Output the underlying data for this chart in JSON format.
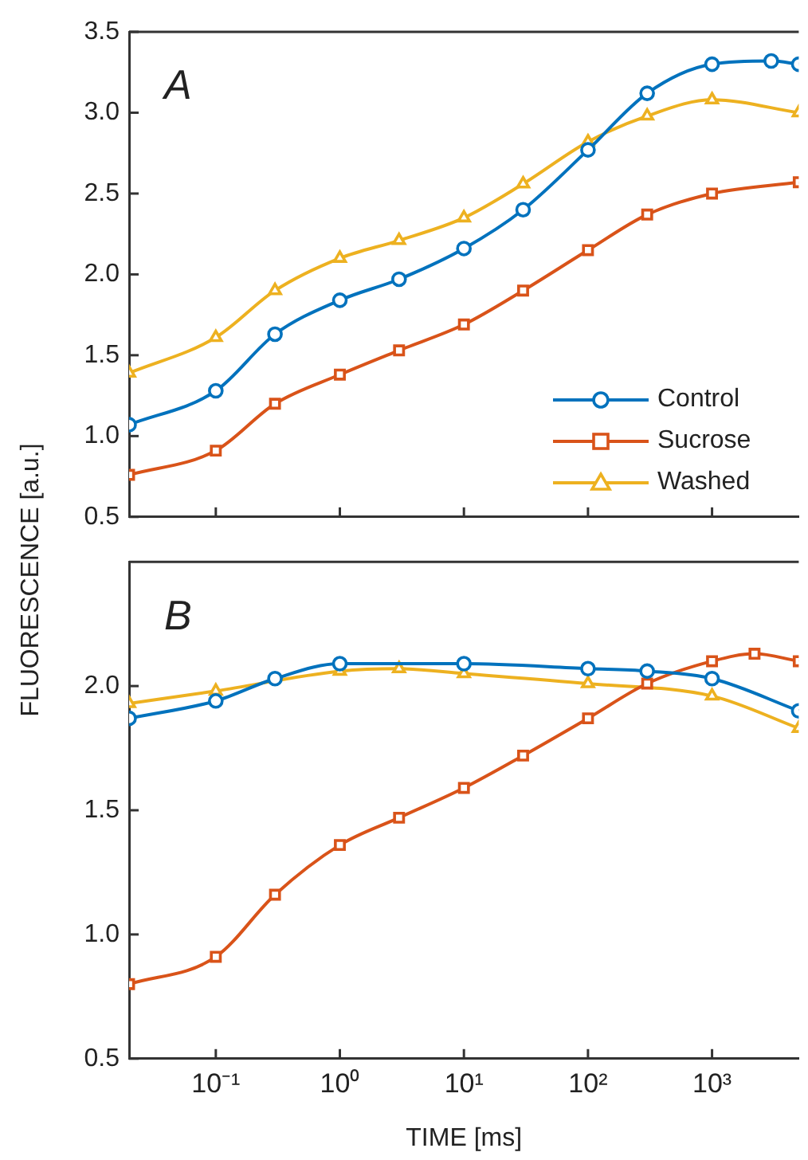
{
  "chart_data": [
    {
      "type": "line",
      "ylabel": "FLUORESCENCE [a.u.]",
      "annotations": [
        "A"
      ],
      "log": "x",
      "legend": "bottom right",
      "tick_labels": "y",
      "grid": false,
      "xlim": [
        0.02,
        5000
      ],
      "xticks": [
        {
          "value": 0.1,
          "label": null
        },
        {
          "value": 1,
          "label": null
        },
        {
          "value": 10,
          "label": null
        },
        {
          "value": 100,
          "label": null
        },
        {
          "value": 1000,
          "label": null
        }
      ],
      "ylim": [
        0.5,
        3.5
      ],
      "yticks": [
        {
          "value": 0.5,
          "label": "0.5"
        },
        {
          "value": 1,
          "label": "1.0"
        },
        {
          "value": 1.5,
          "label": "1.5"
        },
        {
          "value": 2,
          "label": "2.0"
        },
        {
          "value": 2.5,
          "label": "2.5"
        },
        {
          "value": 3,
          "label": "3.0"
        },
        {
          "value": 3.5,
          "label": "3.5"
        }
      ],
      "series": [
        {
          "name": "Control",
          "color": "#0072bd",
          "marker": "circle",
          "x": [
            0.02,
            0.1,
            0.3,
            1,
            3,
            10,
            30,
            100,
            300,
            1000,
            3000,
            5000
          ],
          "values": [
            1.07,
            1.28,
            1.63,
            1.84,
            1.97,
            2.16,
            2.4,
            2.77,
            3.12,
            3.3,
            3.32,
            3.3
          ]
        },
        {
          "name": "Sucrose",
          "color": "#d95319",
          "marker": "square",
          "x": [
            0.02,
            0.1,
            0.3,
            1,
            3,
            10,
            30,
            100,
            300,
            1000,
            5000
          ],
          "values": [
            0.76,
            0.91,
            1.2,
            1.38,
            1.53,
            1.69,
            1.9,
            2.15,
            2.37,
            2.5,
            2.57
          ]
        },
        {
          "name": "Washed",
          "color": "#edb120",
          "marker": "triangle",
          "x": [
            0.02,
            0.1,
            0.3,
            1,
            3,
            10,
            30,
            100,
            300,
            1000,
            5000
          ],
          "values": [
            1.39,
            1.61,
            1.9,
            2.1,
            2.21,
            2.35,
            2.56,
            2.82,
            2.98,
            3.08,
            3.0
          ]
        }
      ]
    },
    {
      "type": "line",
      "xlabel": "TIME [ms]",
      "annotations": [
        "B"
      ],
      "log": "x",
      "grid": false,
      "xlim": [
        0.02,
        5000
      ],
      "xticks": [
        {
          "value": 0.1,
          "label": "10⁻¹"
        },
        {
          "value": 1,
          "label": "10⁰"
        },
        {
          "value": 10,
          "label": "10¹"
        },
        {
          "value": 100,
          "label": "10²"
        },
        {
          "value": 1000,
          "label": "10³"
        }
      ],
      "ylim": [
        0.5,
        2.5
      ],
      "yticks": [
        {
          "value": 0.5,
          "label": "0.5"
        },
        {
          "value": 1,
          "label": "1.0"
        },
        {
          "value": 1.5,
          "label": "1.5"
        },
        {
          "value": 2,
          "label": "2.0"
        }
      ],
      "series": [
        {
          "color": "#0072bd",
          "marker": "circle",
          "x": [
            0.02,
            0.1,
            0.3,
            1,
            10,
            100,
            300,
            1000,
            5000
          ],
          "values": [
            1.87,
            1.94,
            2.03,
            2.09,
            2.09,
            2.07,
            2.06,
            2.03,
            1.9
          ]
        },
        {
          "color": "#d95319",
          "marker": "square",
          "x": [
            0.02,
            0.1,
            0.3,
            1,
            3,
            10,
            30,
            100,
            300,
            1000,
            2200,
            5000
          ],
          "values": [
            0.8,
            0.91,
            1.16,
            1.36,
            1.47,
            1.59,
            1.72,
            1.87,
            2.01,
            2.1,
            2.13,
            2.1
          ]
        },
        {
          "color": "#edb120",
          "marker": "triangle",
          "x": [
            0.02,
            0.1,
            1,
            3,
            10,
            100,
            1000,
            5000
          ],
          "values": [
            1.93,
            1.98,
            2.06,
            2.07,
            2.05,
            2.01,
            1.96,
            1.83
          ]
        }
      ]
    }
  ]
}
